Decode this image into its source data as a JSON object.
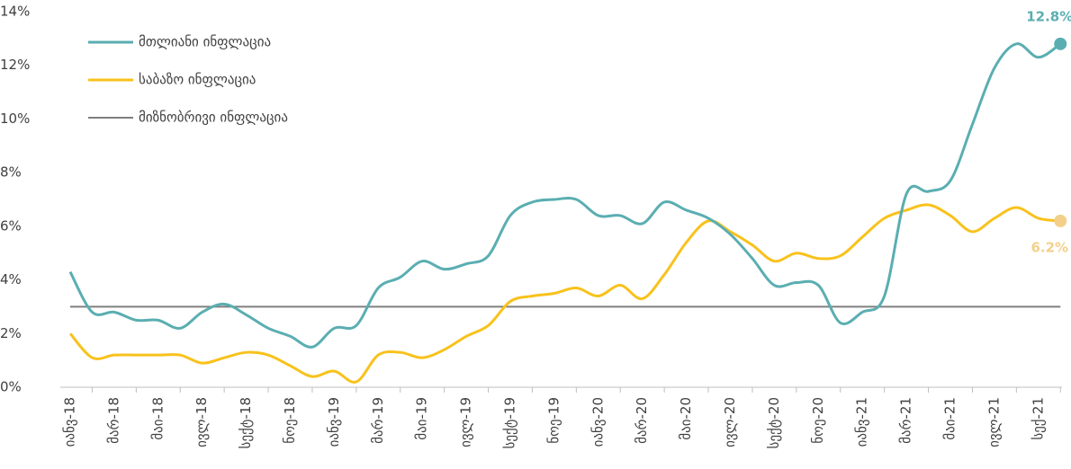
{
  "chart_data": {
    "type": "line",
    "categories": [
      "იანვ-18",
      null,
      "მარ-18",
      null,
      "მაი-18",
      null,
      "ივლ-18",
      null,
      "სექტ-18",
      null,
      "ნოე-18",
      null,
      "იანვ-19",
      null,
      "მარ-19",
      null,
      "მაი-19",
      null,
      "ივლ-19",
      null,
      "სექტ-19",
      null,
      "ნოე-19",
      null,
      "იანვ-20",
      null,
      "მარ-20",
      null,
      "მაი-20",
      null,
      "ივლ-20",
      null,
      "სექტ-20",
      null,
      "ნოე-20",
      null,
      "იანვ-21",
      null,
      "მარ-21",
      null,
      "მაი-21",
      null,
      "ივლ-21",
      null,
      "სექ-21",
      null
    ],
    "series": [
      {
        "name": "მთლიანი ინფლაცია",
        "color": "#5aaeb1",
        "values": [
          4.3,
          2.8,
          2.8,
          2.5,
          2.5,
          2.2,
          2.8,
          3.1,
          2.7,
          2.2,
          1.9,
          1.5,
          2.2,
          2.3,
          3.7,
          4.1,
          4.7,
          4.4,
          4.6,
          4.9,
          6.4,
          6.9,
          7.0,
          7.0,
          6.4,
          6.4,
          6.1,
          6.9,
          6.6,
          6.3,
          5.7,
          4.8,
          3.8,
          3.9,
          3.8,
          2.4,
          2.8,
          3.4,
          7.2,
          7.3,
          7.7,
          9.8,
          11.9,
          12.8,
          12.3,
          12.8
        ],
        "value_labels": [
          null,
          null,
          null,
          null,
          null,
          null,
          null,
          null,
          null,
          null,
          null,
          null,
          null,
          null,
          null,
          null,
          null,
          null,
          null,
          null,
          null,
          null,
          null,
          null,
          null,
          null,
          null,
          null,
          null,
          null,
          null,
          null,
          null,
          null,
          null,
          null,
          null,
          null,
          null,
          null,
          null,
          null,
          null,
          null,
          null,
          "12.8%"
        ],
        "label_color": "#5aaeb1"
      },
      {
        "name": "საბაზო ინფლაცია",
        "color": "#f8c21c",
        "values": [
          2.0,
          1.1,
          1.2,
          1.2,
          1.2,
          1.2,
          0.9,
          1.1,
          1.3,
          1.2,
          0.8,
          0.4,
          0.6,
          0.2,
          1.2,
          1.3,
          1.1,
          1.4,
          1.9,
          2.3,
          3.2,
          3.4,
          3.5,
          3.7,
          3.4,
          3.8,
          3.3,
          4.2,
          5.4,
          6.2,
          5.8,
          5.3,
          4.7,
          5.0,
          4.8,
          4.9,
          5.6,
          6.3,
          6.6,
          6.8,
          6.4,
          5.8,
          6.3,
          6.7,
          6.3,
          6.2
        ],
        "value_labels": [
          null,
          null,
          null,
          null,
          null,
          null,
          null,
          null,
          null,
          null,
          null,
          null,
          null,
          null,
          null,
          null,
          null,
          null,
          null,
          null,
          null,
          null,
          null,
          null,
          null,
          null,
          null,
          null,
          null,
          null,
          null,
          null,
          null,
          null,
          null,
          null,
          null,
          null,
          null,
          null,
          null,
          null,
          null,
          null,
          null,
          "6.2%"
        ],
        "label_color": "#f3d08a"
      },
      {
        "name": "მიზნობრივი ინფლაცია",
        "color": "#7f7f7f",
        "values": [
          3,
          3,
          3,
          3,
          3,
          3,
          3,
          3,
          3,
          3,
          3,
          3,
          3,
          3,
          3,
          3,
          3,
          3,
          3,
          3,
          3,
          3,
          3,
          3,
          3,
          3,
          3,
          3,
          3,
          3,
          3,
          3,
          3,
          3,
          3,
          3,
          3,
          3,
          3,
          3,
          3,
          3,
          3,
          3,
          3,
          3
        ]
      }
    ],
    "ylim": [
      0,
      14
    ],
    "yticks": [
      {
        "value": 0,
        "label": "0%"
      },
      {
        "value": 2,
        "label": "2%"
      },
      {
        "value": 4,
        "label": "4%"
      },
      {
        "value": 6,
        "label": "6%"
      },
      {
        "value": 8,
        "label": "8%"
      },
      {
        "value": 10,
        "label": "10%"
      },
      {
        "value": 12,
        "label": "12%"
      },
      {
        "value": 14,
        "label": "14%"
      }
    ],
    "grid": false,
    "legend": "upper left"
  }
}
